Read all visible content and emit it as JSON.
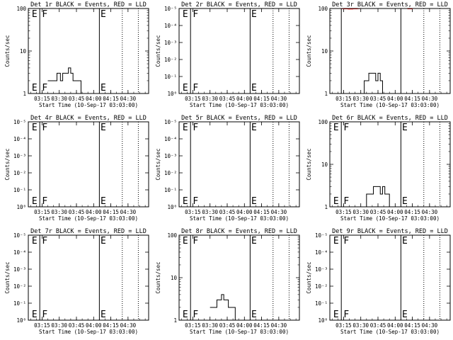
{
  "common": {
    "xlabel": "Start Time (10-Sep-17 03:03:00)",
    "ylabel": "Counts/sec",
    "x_tick_labels": [
      "03:15",
      "03:30",
      "03:45",
      "04:00",
      "04:15",
      "04:30"
    ],
    "x_ticks_min_since_0303": [
      12,
      27,
      42,
      57,
      72,
      87
    ],
    "xlim_min_since_0303": [
      0,
      105
    ],
    "solid_markers_min": [
      10,
      62
    ],
    "dotted_markers_min": [
      82,
      96
    ],
    "colors": {
      "events": "#000000",
      "lld": "#ff0000"
    }
  },
  "chart_data": [
    {
      "type": "line",
      "title": "Det 1r BLACK = Events, RED = LLD",
      "yscale": "log",
      "ytick_labels": [
        "1",
        "10",
        "100"
      ],
      "ylim": [
        1,
        100
      ],
      "flags": [
        {
          "text": "E",
          "x_min": 3
        },
        {
          "text": "F",
          "x_min": 12
        },
        {
          "text": "E",
          "x_min": 63
        }
      ],
      "series": [
        {
          "color": "#000000",
          "x": [
            17,
            20,
            23,
            25,
            28,
            30,
            33,
            35,
            37,
            39,
            42,
            44,
            46,
            48
          ],
          "y": [
            2,
            2,
            2,
            3,
            2,
            3,
            3,
            4,
            3,
            2,
            2,
            2,
            1,
            1
          ]
        },
        {
          "color": "#ff0000",
          "x": [
            13,
            14,
            15,
            16,
            17,
            18,
            19
          ],
          "y": [
            110,
            106,
            103,
            101,
            103,
            106,
            110
          ]
        }
      ]
    },
    {
      "type": "line",
      "title": "Det 2r BLACK = Events, RED = LLD",
      "yscale": "log",
      "ytick_labels": [
        "10⁰",
        "10⁻¹",
        "10⁻²",
        "10⁻³",
        "10⁻⁴",
        "10⁻⁵"
      ],
      "ylim": [
        1,
        1e-05
      ],
      "flags": [
        {
          "text": "E",
          "x_min": 3
        },
        {
          "text": "F",
          "x_min": 12
        },
        {
          "text": "E",
          "x_min": 63
        }
      ],
      "series": []
    },
    {
      "type": "line",
      "title": "Det 3r BLACK = Events, RED = LLD",
      "yscale": "log",
      "ytick_labels": [
        "1",
        "10",
        "100"
      ],
      "ylim": [
        1,
        100
      ],
      "flags": [],
      "series": [
        {
          "color": "#000000",
          "x": [
            28,
            30,
            32,
            34,
            36,
            38,
            40,
            42,
            44,
            46
          ],
          "y": [
            1,
            2,
            2,
            3,
            3,
            3,
            2,
            3,
            2,
            1
          ]
        },
        {
          "color": "#ff0000",
          "x": [
            2,
            4,
            6,
            8,
            10,
            12,
            14,
            16,
            18,
            20,
            22,
            24,
            26,
            28,
            30,
            32
          ],
          "y": [
            110,
            105,
            102,
            100,
            99,
            98,
            98,
            97,
            97,
            98,
            98,
            99,
            100,
            102,
            105,
            110
          ]
        },
        {
          "color": "#ff0000",
          "x": [
            62,
            64,
            66,
            68,
            70,
            72,
            74,
            76
          ],
          "y": [
            110,
            104,
            100,
            98,
            98,
            100,
            104,
            110
          ]
        }
      ]
    },
    {
      "type": "line",
      "title": "Det 4r BLACK = Events, RED = LLD",
      "yscale": "log",
      "ytick_labels": [
        "10⁰",
        "10⁻¹",
        "10⁻²",
        "10⁻³",
        "10⁻⁴",
        "10⁻⁵"
      ],
      "ylim": [
        1,
        1e-05
      ],
      "flags": [
        {
          "text": "E",
          "x_min": 3
        },
        {
          "text": "F",
          "x_min": 12
        },
        {
          "text": "E",
          "x_min": 63
        }
      ],
      "series": []
    },
    {
      "type": "line",
      "title": "Det 5r BLACK = Events, RED = LLD",
      "yscale": "log",
      "ytick_labels": [
        "10⁰",
        "10⁻¹",
        "10⁻²",
        "10⁻³",
        "10⁻⁴",
        "10⁻⁵"
      ],
      "ylim": [
        1,
        1e-05
      ],
      "flags": [
        {
          "text": "E",
          "x_min": 3
        },
        {
          "text": "F",
          "x_min": 12
        },
        {
          "text": "E",
          "x_min": 63
        }
      ],
      "series": []
    },
    {
      "type": "line",
      "title": "Det 6r BLACK = Events, RED = LLD",
      "yscale": "log",
      "ytick_labels": [
        "1",
        "10",
        "100"
      ],
      "ylim": [
        1,
        100
      ],
      "flags": [
        {
          "text": "E",
          "x_min": 3
        },
        {
          "text": "F",
          "x_min": 12
        },
        {
          "text": "E",
          "x_min": 63
        }
      ],
      "series": [
        {
          "color": "#000000",
          "x": [
            30,
            32,
            34,
            36,
            38,
            40,
            42,
            44,
            46,
            48,
            50,
            52,
            54
          ],
          "y": [
            1,
            2,
            2,
            2,
            3,
            3,
            3,
            2,
            3,
            2,
            2,
            1,
            1
          ]
        }
      ]
    },
    {
      "type": "line",
      "title": "Det 7r BLACK = Events, RED = LLD",
      "yscale": "log",
      "ytick_labels": [
        "10⁰",
        "10⁻¹",
        "10⁻²",
        "10⁻³",
        "10⁻⁴",
        "10⁻⁵"
      ],
      "ylim": [
        1,
        1e-05
      ],
      "flags": [
        {
          "text": "E",
          "x_min": 3
        },
        {
          "text": "F",
          "x_min": 12
        },
        {
          "text": "E",
          "x_min": 63
        }
      ],
      "series": []
    },
    {
      "type": "line",
      "title": "Det 8r BLACK = Events, RED = LLD",
      "yscale": "log",
      "ytick_labels": [
        "1",
        "10",
        "100"
      ],
      "ylim": [
        1,
        100
      ],
      "flags": [
        {
          "text": "E",
          "x_min": 3
        },
        {
          "text": "F",
          "x_min": 12
        },
        {
          "text": "E",
          "x_min": 63
        }
      ],
      "series": [
        {
          "color": "#000000",
          "x": [
            27,
            29,
            31,
            33,
            35,
            37,
            39,
            41,
            43,
            45,
            47,
            49
          ],
          "y": [
            2,
            2,
            2,
            3,
            3,
            4,
            3,
            3,
            2,
            2,
            2,
            1
          ]
        }
      ]
    },
    {
      "type": "line",
      "title": "Det 9r BLACK = Events, RED = LLD",
      "yscale": "log",
      "ytick_labels": [
        "10⁰",
        "10⁻¹",
        "10⁻²",
        "10⁻³",
        "10⁻⁴",
        "10⁻⁵"
      ],
      "ylim": [
        1,
        1e-05
      ],
      "flags": [
        {
          "text": "E",
          "x_min": 3
        },
        {
          "text": "F",
          "x_min": 12
        },
        {
          "text": "E",
          "x_min": 63
        }
      ],
      "series": []
    }
  ]
}
